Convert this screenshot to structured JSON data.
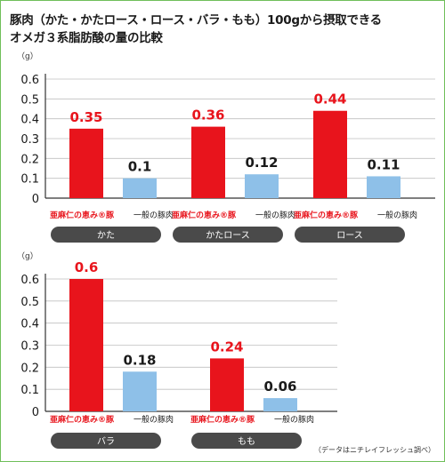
{
  "title_line1": "豚肉（かた・かたロース・ロース・バラ・もも）100gから摂取できる",
  "title_line2": "オメガ３系脂肪酸の量の比較",
  "footnote": "（データはニチレイフレッシュ調べ）",
  "colors": {
    "brand": "#e8141c",
    "general": "#8ec0e8",
    "pill": "#4a4a4a",
    "pill_text": "#ffffff",
    "axis": "#333333",
    "grid": "#bfbfbf",
    "frame": "#6fbf5a"
  },
  "chart_data": [
    {
      "type": "bar",
      "ylabel": "（g）",
      "ylim": [
        0,
        0.6
      ],
      "yticks": [
        "0",
        "0.1",
        "0.2",
        "0.3",
        "0.4",
        "0.5",
        "0.6"
      ],
      "grid": true,
      "categories": [
        "かた",
        "かたロース",
        "ロース"
      ],
      "series": [
        {
          "name": "亜麻仁の恵み®豚",
          "values": [
            0.35,
            0.36,
            0.44
          ],
          "labels": [
            "0.35",
            "0.36",
            "0.44"
          ]
        },
        {
          "name": "一般の豚肉",
          "values": [
            0.1,
            0.12,
            0.11
          ],
          "labels": [
            "0.1",
            "0.12",
            "0.11"
          ]
        }
      ]
    },
    {
      "type": "bar",
      "ylabel": "（g）",
      "ylim": [
        0,
        0.6
      ],
      "yticks": [
        "0",
        "0.1",
        "0.2",
        "0.3",
        "0.4",
        "0.5",
        "0.6"
      ],
      "grid": true,
      "categories": [
        "バラ",
        "もも"
      ],
      "series": [
        {
          "name": "亜麻仁の恵み®豚",
          "values": [
            0.6,
            0.24
          ],
          "labels": [
            "0.6",
            "0.24"
          ]
        },
        {
          "name": "一般の豚肉",
          "values": [
            0.18,
            0.06
          ],
          "labels": [
            "0.18",
            "0.06"
          ]
        }
      ]
    }
  ]
}
